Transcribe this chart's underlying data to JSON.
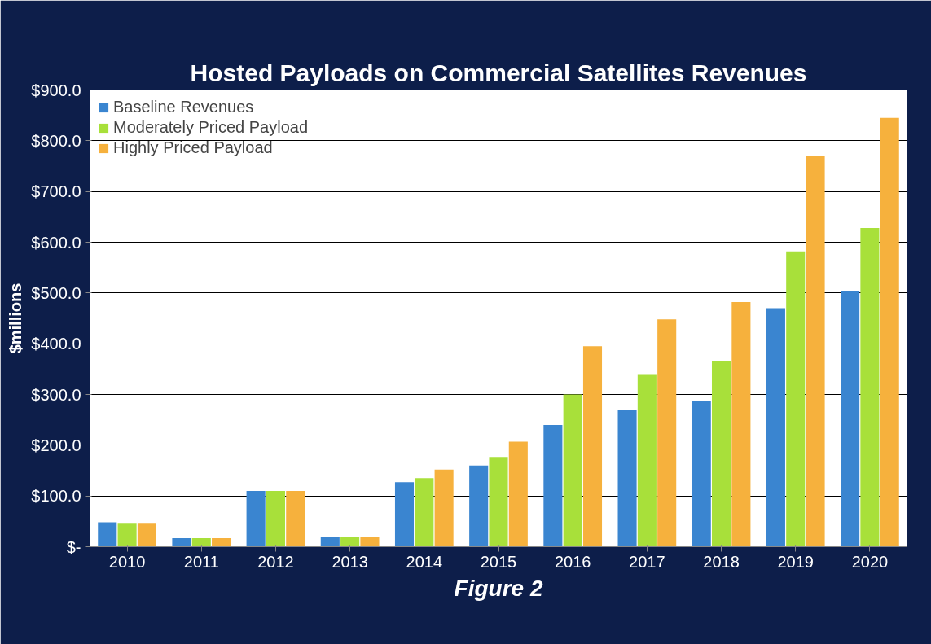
{
  "chart_data": {
    "type": "bar",
    "title": "Hosted Payloads on Commercial Satellites Revenues",
    "ylabel": "$millions",
    "categories": [
      "2010",
      "2011",
      "2012",
      "2013",
      "2014",
      "2015",
      "2016",
      "2017",
      "2018",
      "2019",
      "2020"
    ],
    "series": [
      {
        "name": "Baseline Revenues",
        "color": "#3a85d0",
        "values": [
          48,
          17,
          110,
          20,
          127,
          160,
          240,
          270,
          287,
          470,
          503
        ]
      },
      {
        "name": "Moderately Priced Payload",
        "color": "#a8e03a",
        "values": [
          47,
          17,
          110,
          20,
          135,
          177,
          300,
          340,
          365,
          582,
          628
        ]
      },
      {
        "name": "Highly Priced Payload",
        "color": "#f6b13d",
        "values": [
          47,
          17,
          110,
          20,
          152,
          207,
          395,
          448,
          482,
          770,
          845
        ]
      }
    ],
    "ylim": [
      0,
      900
    ],
    "yticks": [
      {
        "value": 0,
        "label": "$-"
      },
      {
        "value": 100,
        "label": "$100.0"
      },
      {
        "value": 200,
        "label": "$200.0"
      },
      {
        "value": 300,
        "label": "$300.0"
      },
      {
        "value": 400,
        "label": "$400.0"
      },
      {
        "value": 500,
        "label": "$500.0"
      },
      {
        "value": 600,
        "label": "$600.0"
      },
      {
        "value": 700,
        "label": "$700.0"
      },
      {
        "value": 800,
        "label": "$800.0"
      },
      {
        "value": 900,
        "label": "$900.0"
      }
    ],
    "grid": "y",
    "legend": "top left",
    "annotations": [
      "Figure 2"
    ]
  }
}
